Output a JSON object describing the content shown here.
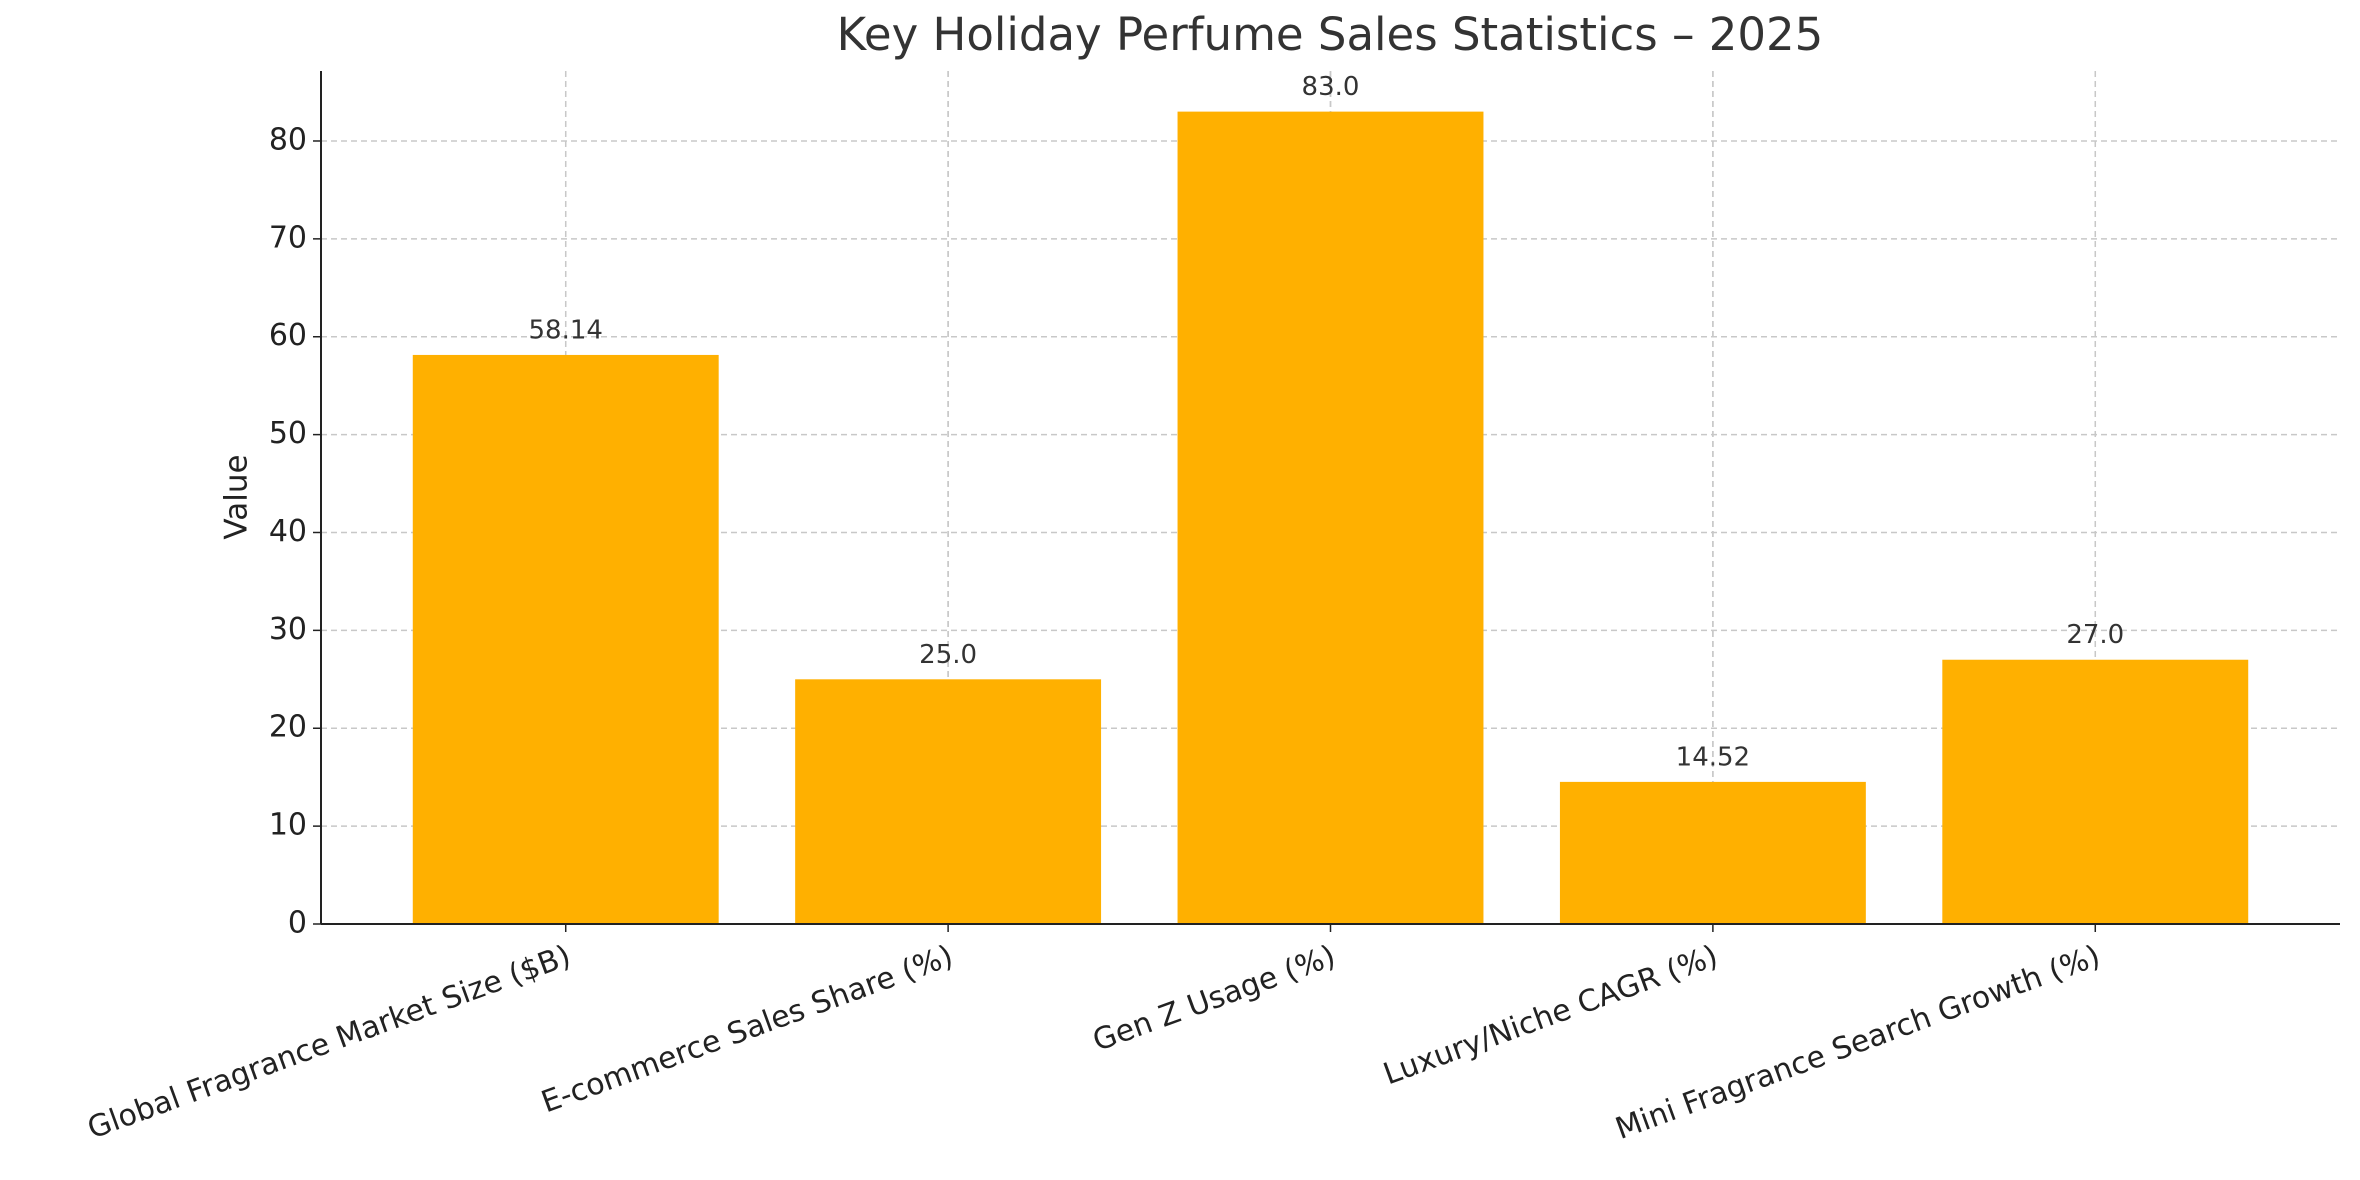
{
  "chart_data": {
    "type": "bar",
    "title": "Key Holiday Perfume Sales Statistics – 2025",
    "y_label": "Value",
    "categories": [
      "Global Fragrance Market Size ($B)",
      "E-commerce Sales Share (%)",
      "Gen Z Usage (%)",
      "Luxury/Niche CAGR (%)",
      "Mini Fragrance Search Growth (%)"
    ],
    "values": [
      58.14,
      25,
      83,
      14.52,
      27
    ],
    "value_labels": [
      "58.14",
      "25.0",
      "83.0",
      "14.52",
      "27.0"
    ],
    "color": "#ffb000",
    "ylim": [
      0,
      87.15
    ],
    "yticks": [
      0,
      10,
      20,
      30,
      40,
      50,
      60,
      70,
      80
    ],
    "grid": true
  }
}
